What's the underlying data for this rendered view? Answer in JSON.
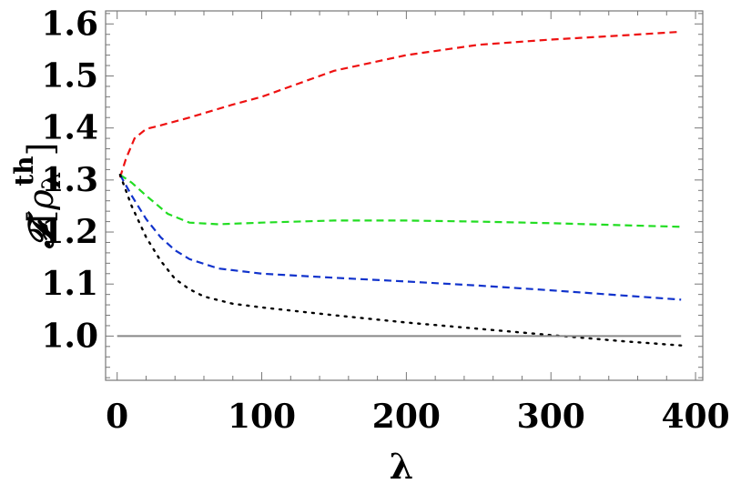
{
  "chart_data": {
    "type": "line",
    "xlabel": "λ",
    "ylabel": {
      "script_f": "𝓕",
      "open": "[",
      "rho": "ρ",
      "sub": "λ",
      "sup": "th",
      "close": "]"
    },
    "xlim": [
      -8,
      405
    ],
    "ylim": [
      0.915,
      1.625
    ],
    "x_ticks": [
      0,
      100,
      200,
      300,
      400
    ],
    "x_tick_labels": [
      "0",
      "100",
      "200",
      "300",
      "400"
    ],
    "y_ticks": [
      1.0,
      1.1,
      1.2,
      1.3,
      1.4,
      1.5,
      1.6
    ],
    "y_tick_labels": [
      "1.0",
      "1.1",
      "1.2",
      "1.3",
      "1.4",
      "1.5",
      "1.6"
    ],
    "grid": false,
    "series": [
      {
        "color": "#ee1111",
        "dash": "dashed",
        "x": [
          2,
          6,
          12,
          20,
          30,
          50,
          80,
          100,
          150,
          200,
          250,
          300,
          350,
          390
        ],
        "y": [
          1.305,
          1.34,
          1.38,
          1.398,
          1.405,
          1.42,
          1.445,
          1.46,
          1.51,
          1.54,
          1.56,
          1.57,
          1.578,
          1.585
        ]
      },
      {
        "color": "#22dd22",
        "dash": "dashed",
        "x": [
          2,
          10,
          20,
          35,
          50,
          70,
          100,
          150,
          200,
          250,
          300,
          350,
          390
        ],
        "y": [
          1.31,
          1.295,
          1.27,
          1.235,
          1.218,
          1.215,
          1.218,
          1.222,
          1.222,
          1.22,
          1.217,
          1.213,
          1.21
        ]
      },
      {
        "color": "#1133cc",
        "dash": "dashed",
        "x": [
          2,
          10,
          20,
          30,
          40,
          50,
          70,
          100,
          150,
          200,
          250,
          300,
          350,
          390
        ],
        "y": [
          1.31,
          1.27,
          1.225,
          1.19,
          1.165,
          1.148,
          1.13,
          1.12,
          1.112,
          1.105,
          1.097,
          1.088,
          1.078,
          1.07
        ]
      },
      {
        "color": "#000000",
        "dash": "dotted",
        "x": [
          2,
          10,
          20,
          30,
          40,
          50,
          60,
          80,
          100,
          150,
          200,
          250,
          300,
          350,
          390
        ],
        "y": [
          1.31,
          1.25,
          1.19,
          1.145,
          1.11,
          1.09,
          1.076,
          1.062,
          1.055,
          1.04,
          1.026,
          1.014,
          1.002,
          0.99,
          0.982
        ]
      },
      {
        "color": "#888888",
        "dash": "solid",
        "x": [
          0,
          390
        ],
        "y": [
          1.0,
          1.0
        ]
      }
    ]
  }
}
